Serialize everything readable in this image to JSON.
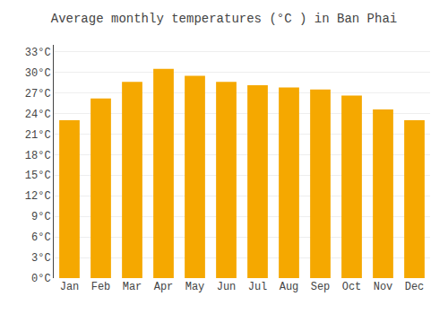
{
  "chart_data": {
    "type": "bar",
    "title": "Average monthly temperatures (°C ) in Ban Phai",
    "categories": [
      "Jan",
      "Feb",
      "Mar",
      "Apr",
      "May",
      "Jun",
      "Jul",
      "Aug",
      "Sep",
      "Oct",
      "Nov",
      "Dec"
    ],
    "values": [
      23.0,
      26.2,
      28.6,
      30.5,
      29.5,
      28.6,
      28.1,
      27.8,
      27.5,
      26.6,
      24.6,
      23.0
    ],
    "color": "#F5A800",
    "ylim": [
      0,
      34
    ],
    "yticks": [
      {
        "value": 0,
        "label": "0°C"
      },
      {
        "value": 3,
        "label": "3°C"
      },
      {
        "value": 6,
        "label": "6°C"
      },
      {
        "value": 9,
        "label": "9°C"
      },
      {
        "value": 12,
        "label": "12°C"
      },
      {
        "value": 15,
        "label": "15°C"
      },
      {
        "value": 18,
        "label": "18°C"
      },
      {
        "value": 21,
        "label": "21°C"
      },
      {
        "value": 24,
        "label": "24°C"
      },
      {
        "value": 27,
        "label": "27°C"
      },
      {
        "value": 30,
        "label": "30°C"
      },
      {
        "value": 33,
        "label": "33°C"
      }
    ],
    "grid": true
  }
}
